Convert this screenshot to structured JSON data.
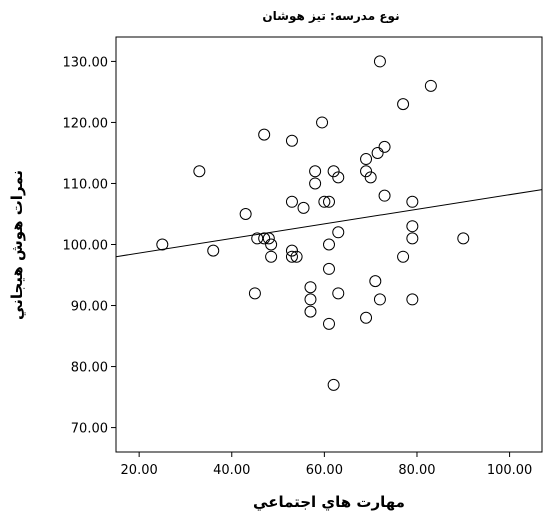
{
  "chart_data": {
    "type": "scatter",
    "title": "نوع مدرسه: تيز هوشان",
    "xlabel": "مهارت هاي اجتماعي",
    "ylabel": "نمرات هوش هيجاني",
    "xlim": [
      15,
      107
    ],
    "ylim": [
      66,
      134
    ],
    "xticks": [
      20,
      40,
      60,
      80,
      100
    ],
    "yticks": [
      70,
      80,
      90,
      100,
      110,
      120,
      130
    ],
    "xtick_labels": [
      "20.00",
      "40.00",
      "60.00",
      "80.00",
      "100.00"
    ],
    "ytick_labels": [
      "70.00",
      "80.00",
      "90.00",
      "100.00",
      "110.00",
      "120.00",
      "130.00"
    ],
    "grid": false,
    "points": [
      {
        "x": 25,
        "y": 100
      },
      {
        "x": 33,
        "y": 112
      },
      {
        "x": 36,
        "y": 99
      },
      {
        "x": 43,
        "y": 105
      },
      {
        "x": 45,
        "y": 92
      },
      {
        "x": 45.5,
        "y": 101
      },
      {
        "x": 47,
        "y": 118
      },
      {
        "x": 47,
        "y": 101
      },
      {
        "x": 48,
        "y": 101
      },
      {
        "x": 48.5,
        "y": 100
      },
      {
        "x": 48.5,
        "y": 98
      },
      {
        "x": 53,
        "y": 117
      },
      {
        "x": 53,
        "y": 107
      },
      {
        "x": 53,
        "y": 99
      },
      {
        "x": 53,
        "y": 98
      },
      {
        "x": 54,
        "y": 98
      },
      {
        "x": 55.5,
        "y": 106
      },
      {
        "x": 57,
        "y": 93
      },
      {
        "x": 57,
        "y": 91
      },
      {
        "x": 57,
        "y": 89
      },
      {
        "x": 58,
        "y": 110
      },
      {
        "x": 58,
        "y": 112
      },
      {
        "x": 59.5,
        "y": 120
      },
      {
        "x": 60,
        "y": 107
      },
      {
        "x": 61,
        "y": 107
      },
      {
        "x": 61,
        "y": 100
      },
      {
        "x": 61,
        "y": 96
      },
      {
        "x": 61,
        "y": 87
      },
      {
        "x": 62,
        "y": 112
      },
      {
        "x": 62,
        "y": 77
      },
      {
        "x": 63,
        "y": 111
      },
      {
        "x": 63,
        "y": 102
      },
      {
        "x": 63,
        "y": 92
      },
      {
        "x": 69,
        "y": 114
      },
      {
        "x": 69,
        "y": 112
      },
      {
        "x": 69,
        "y": 88
      },
      {
        "x": 70,
        "y": 111
      },
      {
        "x": 71,
        "y": 94
      },
      {
        "x": 71.5,
        "y": 115
      },
      {
        "x": 72,
        "y": 130
      },
      {
        "x": 72,
        "y": 91
      },
      {
        "x": 73,
        "y": 116
      },
      {
        "x": 73,
        "y": 108
      },
      {
        "x": 77,
        "y": 123
      },
      {
        "x": 77,
        "y": 98
      },
      {
        "x": 79,
        "y": 107
      },
      {
        "x": 79,
        "y": 103
      },
      {
        "x": 79,
        "y": 101
      },
      {
        "x": 79,
        "y": 91
      },
      {
        "x": 83,
        "y": 126
      },
      {
        "x": 90,
        "y": 101
      }
    ],
    "fit_line": {
      "x": [
        15,
        107
      ],
      "y": [
        98,
        109
      ]
    }
  }
}
